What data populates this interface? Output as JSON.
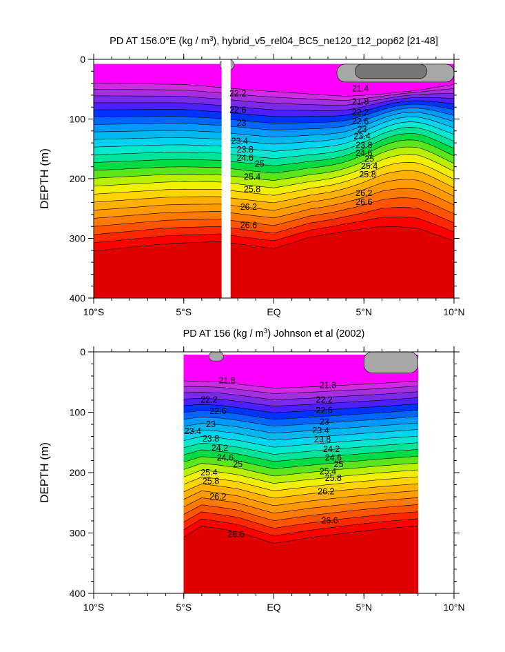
{
  "chart_data": [
    {
      "type": "contour",
      "title": "PD AT 156.0°E (kg / m",
      "title_sup": "3",
      "title_suffix": "), hybrid_v5_rel04_BC5_ne120_t12_pop62 [21-48]",
      "ylabel": "DEPTH (m)",
      "xlim": [
        -10,
        10
      ],
      "ylim": [
        400,
        0
      ],
      "xticks": [
        {
          "value": -10,
          "label": "10°S"
        },
        {
          "value": -5,
          "label": "5°S"
        },
        {
          "value": 0,
          "label": "EQ"
        },
        {
          "value": 5,
          "label": "5°N"
        },
        {
          "value": 10,
          "label": "10°N"
        }
      ],
      "yticks": [
        {
          "value": 0,
          "label": "0"
        },
        {
          "value": 100,
          "label": "100"
        },
        {
          "value": 200,
          "label": "200"
        },
        {
          "value": 300,
          "label": "300"
        },
        {
          "value": 400,
          "label": "400"
        }
      ],
      "levels": [
        21.4,
        21.8,
        22.2,
        22.6,
        23,
        23.4,
        23.8,
        24.2,
        24.6,
        25,
        25.4,
        25.8,
        26.2,
        26.6
      ],
      "data_x_start": -10,
      "data_x_end": 10,
      "surface_depth": 8,
      "gap": {
        "x_start": -2.9,
        "x_end": -2.4
      },
      "shallow": [
        {
          "x": -10,
          "depth": 40
        },
        {
          "x": -5,
          "depth": 42
        },
        {
          "x": -1,
          "depth": 52
        },
        {
          "x": 2,
          "depth": 58
        },
        {
          "x": 4,
          "depth": 62
        },
        {
          "x": 6,
          "depth": 58
        },
        {
          "x": 8,
          "depth": 52
        },
        {
          "x": 10,
          "depth": 42
        }
      ],
      "deep": [
        {
          "x": -10,
          "depth": 335
        },
        {
          "x": -6,
          "depth": 322
        },
        {
          "x": -3,
          "depth": 318
        },
        {
          "x": 0,
          "depth": 330
        },
        {
          "x": 2,
          "depth": 310
        },
        {
          "x": 4,
          "depth": 300
        },
        {
          "x": 6,
          "depth": 295
        },
        {
          "x": 8,
          "depth": 300
        },
        {
          "x": 10,
          "depth": 320
        }
      ],
      "bulge": {
        "x": 7.5,
        "width": 2.8,
        "amount": -40
      },
      "contour_labels": [
        {
          "text": "21.4",
          "x": 4.8,
          "depth": 50
        },
        {
          "text": "21.8",
          "x": 4.8,
          "depth": 72
        },
        {
          "text": "22.2",
          "x": -2.0,
          "depth": 58
        },
        {
          "text": "22.2",
          "x": 4.8,
          "depth": 90
        },
        {
          "text": "22.6",
          "x": -2.0,
          "depth": 86
        },
        {
          "text": "22.6",
          "x": 4.8,
          "depth": 105
        },
        {
          "text": "23",
          "x": -1.8,
          "depth": 108
        },
        {
          "text": "23",
          "x": 4.9,
          "depth": 118
        },
        {
          "text": "23.4",
          "x": -1.9,
          "depth": 138
        },
        {
          "text": "23.4",
          "x": 4.9,
          "depth": 130
        },
        {
          "text": "23.8",
          "x": -1.6,
          "depth": 152
        },
        {
          "text": "23.8",
          "x": 5.0,
          "depth": 145
        },
        {
          "text": "24.6",
          "x": -1.6,
          "depth": 166
        },
        {
          "text": "24.6",
          "x": 5.0,
          "depth": 158
        },
        {
          "text": "25",
          "x": -0.8,
          "depth": 176
        },
        {
          "text": "25",
          "x": 5.3,
          "depth": 168
        },
        {
          "text": "25.4",
          "x": -1.2,
          "depth": 198
        },
        {
          "text": "25.4",
          "x": 5.3,
          "depth": 180
        },
        {
          "text": "25.8",
          "x": -1.2,
          "depth": 219
        },
        {
          "text": "25.8",
          "x": 5.2,
          "depth": 194
        },
        {
          "text": "26.2",
          "x": -1.4,
          "depth": 248
        },
        {
          "text": "26.2",
          "x": 5.0,
          "depth": 225
        },
        {
          "text": "26.6",
          "x": -1.4,
          "depth": 279
        },
        {
          "text": "26.6",
          "x": 5.0,
          "depth": 240
        }
      ],
      "gray_patches": [
        {
          "x_start": 3.5,
          "x_end": 10,
          "depth_top": 8,
          "depth_bottom": 38,
          "color": "#a7a7a7"
        },
        {
          "x_start": 4.5,
          "x_end": 8.5,
          "depth_top": 8,
          "depth_bottom": 32,
          "color": "#777777"
        },
        {
          "x_start": -3.0,
          "x_end": -2.2,
          "depth_top": 0,
          "depth_bottom": 18,
          "color": "#a7a7a7"
        }
      ]
    },
    {
      "type": "contour",
      "title": "PD AT 156 (kg / m",
      "title_sup": "3",
      "title_suffix": ") Johnson et al (2002)",
      "ylabel": "DEPTH (m)",
      "xlim": [
        -10,
        10
      ],
      "ylim": [
        400,
        0
      ],
      "xticks": [
        {
          "value": -10,
          "label": "10°S"
        },
        {
          "value": -5,
          "label": "5°S"
        },
        {
          "value": 0,
          "label": "EQ"
        },
        {
          "value": 5,
          "label": "5°N"
        },
        {
          "value": 10,
          "label": "10°N"
        }
      ],
      "yticks": [
        {
          "value": 0,
          "label": "0"
        },
        {
          "value": 100,
          "label": "100"
        },
        {
          "value": 200,
          "label": "200"
        },
        {
          "value": 300,
          "label": "300"
        },
        {
          "value": 400,
          "label": "400"
        }
      ],
      "levels": [
        21.4,
        21.8,
        22.2,
        22.6,
        23,
        23.4,
        23.8,
        24.2,
        24.6,
        25,
        25.4,
        25.8,
        26.2,
        26.6
      ],
      "data_x_start": -5,
      "data_x_end": 8,
      "surface_depth": 5,
      "shallow": [
        {
          "x": -5,
          "depth": 48
        },
        {
          "x": -3,
          "depth": 50
        },
        {
          "x": 0,
          "depth": 60
        },
        {
          "x": 2,
          "depth": 58
        },
        {
          "x": 4,
          "depth": 55
        },
        {
          "x": 6,
          "depth": 52
        },
        {
          "x": 8,
          "depth": 48
        }
      ],
      "deep": [
        {
          "x": -5,
          "depth": 320
        },
        {
          "x": -4,
          "depth": 300
        },
        {
          "x": -2,
          "depth": 310
        },
        {
          "x": 0,
          "depth": 330
        },
        {
          "x": 2,
          "depth": 320
        },
        {
          "x": 4,
          "depth": 312
        },
        {
          "x": 6,
          "depth": 305
        },
        {
          "x": 8,
          "depth": 300
        }
      ],
      "contour_labels": [
        {
          "text": "21.8",
          "x": -2.6,
          "depth": 48
        },
        {
          "text": "21.8",
          "x": 3.0,
          "depth": 56
        },
        {
          "text": "22.2",
          "x": -3.6,
          "depth": 80
        },
        {
          "text": "22.2",
          "x": 2.8,
          "depth": 80
        },
        {
          "text": "22.6",
          "x": -3.1,
          "depth": 99
        },
        {
          "text": "22.6",
          "x": 2.8,
          "depth": 98
        },
        {
          "text": "23",
          "x": -3.5,
          "depth": 121
        },
        {
          "text": "23",
          "x": 2.8,
          "depth": 117
        },
        {
          "text": "23.4",
          "x": -4.5,
          "depth": 132
        },
        {
          "text": "23.4",
          "x": 2.6,
          "depth": 131
        },
        {
          "text": "23.8",
          "x": -3.5,
          "depth": 145
        },
        {
          "text": "23.8",
          "x": 2.7,
          "depth": 146
        },
        {
          "text": "24.2",
          "x": -3.0,
          "depth": 160
        },
        {
          "text": "24.2",
          "x": 3.2,
          "depth": 162
        },
        {
          "text": "24.6",
          "x": -2.7,
          "depth": 176
        },
        {
          "text": "24.6",
          "x": 3.3,
          "depth": 176
        },
        {
          "text": "25",
          "x": -2.0,
          "depth": 187
        },
        {
          "text": "25",
          "x": 3.6,
          "depth": 187
        },
        {
          "text": "25.4",
          "x": -3.6,
          "depth": 201
        },
        {
          "text": "25.4",
          "x": 3.0,
          "depth": 199
        },
        {
          "text": "25.8",
          "x": -3.5,
          "depth": 215
        },
        {
          "text": "25.8",
          "x": 3.3,
          "depth": 210
        },
        {
          "text": "26.2",
          "x": -3.1,
          "depth": 241
        },
        {
          "text": "26.2",
          "x": 2.9,
          "depth": 232
        },
        {
          "text": "26.6",
          "x": -2.1,
          "depth": 303
        },
        {
          "text": "26.6",
          "x": 3.1,
          "depth": 280
        }
      ],
      "gray_patches": [
        {
          "x_start": -3.6,
          "x_end": -2.8,
          "depth_top": 0,
          "depth_bottom": 15,
          "color": "#a7a7a7"
        },
        {
          "x_start": 5.0,
          "x_end": 8.0,
          "depth_top": 0,
          "depth_bottom": 35,
          "color": "#a7a7a7"
        }
      ]
    }
  ],
  "colors": [
    "#ff00ff",
    "#d02ae6",
    "#a62de0",
    "#7a2ae8",
    "#4b1fff",
    "#0033ff",
    "#0066ff",
    "#0099ff",
    "#00b7f0",
    "#00d4f0",
    "#00e8d0",
    "#00e49a",
    "#00dc44",
    "#5ae61a",
    "#b8f000",
    "#f0f000",
    "#ffd400",
    "#ffb000",
    "#ff9a00",
    "#ff7a00",
    "#ff5400",
    "#ff2800",
    "#ff0000",
    "#e00000",
    "#c80000"
  ]
}
